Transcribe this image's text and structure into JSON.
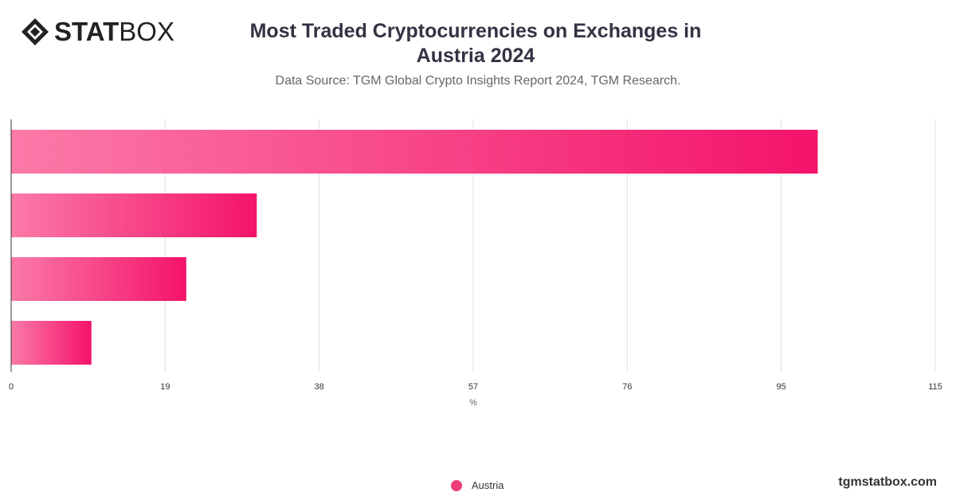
{
  "brand": {
    "logo_bold": "STAT",
    "logo_light": "BOX",
    "footer_url": "tgmstatbox.com"
  },
  "header": {
    "title": "Most Traded Cryptocurrencies on Exchanges in Austria 2024",
    "subtitle": "Data Source: TGM Global Crypto Insights Report 2024, TGM Research."
  },
  "colors": {
    "bar_start": "#fb7aa8",
    "bar_end": "#f4136a",
    "legend": "#ec3d7a",
    "grid": "#e0e0e0",
    "axis": "#333333"
  },
  "chart_data": {
    "type": "bar",
    "orientation": "horizontal",
    "categories": [
      "",
      "",
      "",
      ""
    ],
    "series": [
      {
        "name": "Austria",
        "values": [
          99.5,
          30.3,
          21.6,
          9.9
        ]
      }
    ],
    "x_ticks": [
      "0",
      "19",
      "38",
      "57",
      "76",
      "95",
      "115"
    ],
    "xlim": [
      0,
      114
    ],
    "xlabel": "%",
    "grid": true,
    "legend_position": "bottom"
  }
}
